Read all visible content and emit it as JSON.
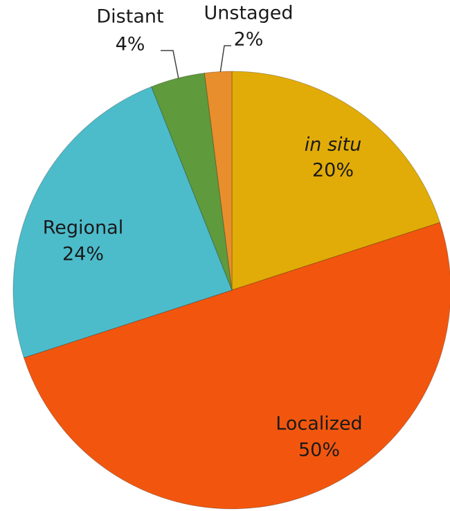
{
  "chart_data": {
    "type": "pie",
    "categories": [
      "in situ",
      "Localized",
      "Regional",
      "Distant",
      "Unstaged"
    ],
    "values": [
      20,
      50,
      24,
      4,
      2
    ],
    "value_labels": [
      "20%",
      "50%",
      "24%",
      "4%",
      "2%"
    ],
    "colors": [
      "#e2ac08",
      "#f2560e",
      "#4cbccb",
      "#5f9a3c",
      "#e98e2c"
    ]
  }
}
